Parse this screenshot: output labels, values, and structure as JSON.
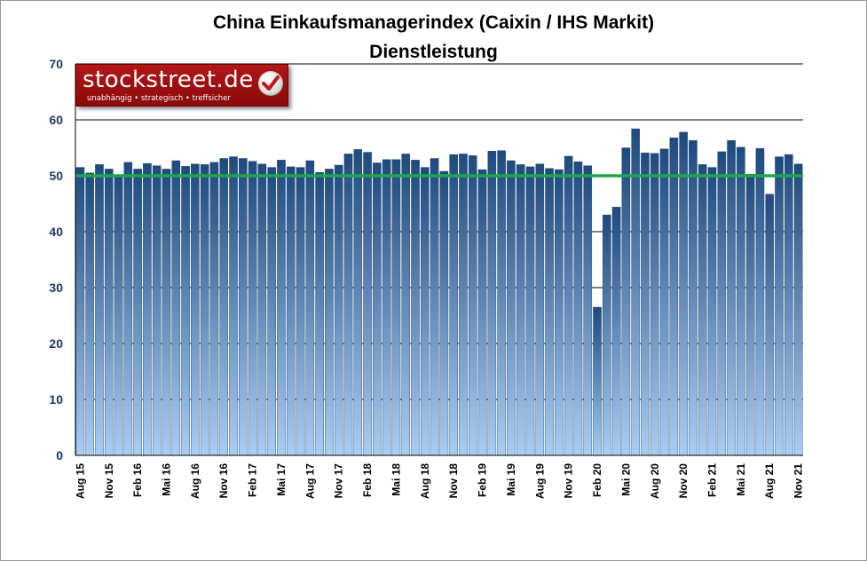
{
  "header": {
    "title": "China Einkaufsmanagerindex (Caixin / IHS Markit)",
    "subtitle": "Dienstleistung"
  },
  "logo": {
    "brand": "stockstreet.de",
    "tagline": "unabhängig • strategisch • treffsicher",
    "icon": "checkmark-icon",
    "color": "#a81212"
  },
  "chart_data": {
    "type": "bar",
    "title": "China Einkaufsmanagerindex (Caixin / IHS Markit)",
    "subtitle": "Dienstleistung",
    "ylim": [
      0,
      70
    ],
    "yticks": [
      0,
      10,
      20,
      30,
      40,
      50,
      60,
      70
    ],
    "grid": true,
    "reference_line": 50,
    "reference_line_color": "#1aa84a",
    "bar_color_top": "#1f4a7e",
    "bar_color_bottom": "#a9cdf3",
    "categories": [
      "Aug 15",
      "Sep 15",
      "Okt 15",
      "Nov 15",
      "Dez 15",
      "Jan 16",
      "Feb 16",
      "Mrz 16",
      "Apr 16",
      "Mai 16",
      "Jun 16",
      "Jul 16",
      "Aug 16",
      "Sep 16",
      "Okt 16",
      "Nov 16",
      "Dez 16",
      "Jan 17",
      "Feb 17",
      "Mrz 17",
      "Apr 17",
      "Mai 17",
      "Jun 17",
      "Jul 17",
      "Aug 17",
      "Sep 17",
      "Okt 17",
      "Nov 17",
      "Dez 17",
      "Jan 18",
      "Feb 18",
      "Mrz 18",
      "Apr 18",
      "Mai 18",
      "Jun 18",
      "Jul 18",
      "Aug 18",
      "Sep 18",
      "Okt 18",
      "Nov 18",
      "Dez 18",
      "Jan 19",
      "Feb 19",
      "Mrz 19",
      "Apr 19",
      "Mai 19",
      "Jun 19",
      "Jul 19",
      "Aug 19",
      "Sep 19",
      "Okt 19",
      "Nov 19",
      "Dez 19",
      "Jan 20",
      "Feb 20",
      "Mrz 20",
      "Apr 20",
      "Mai 20",
      "Jun 20",
      "Jul 20",
      "Aug 20",
      "Sep 20",
      "Okt 20",
      "Nov 20",
      "Dez 20",
      "Jan 21",
      "Feb 21",
      "Mrz 21",
      "Apr 21",
      "Mai 21",
      "Jun 21",
      "Jul 21",
      "Aug 21",
      "Sep 21",
      "Okt 21",
      "Nov 21"
    ],
    "xtick_labels": [
      "Aug 15",
      "Nov 15",
      "Feb 16",
      "Mai 16",
      "Aug 16",
      "Nov 16",
      "Feb 17",
      "Mai 17",
      "Aug 17",
      "Nov 17",
      "Feb 18",
      "Mai 18",
      "Aug 18",
      "Nov 18",
      "Feb 19",
      "Mai 19",
      "Aug 19",
      "Nov 19",
      "Feb 20",
      "Mai 20",
      "Aug 20",
      "Nov 20",
      "Feb 21",
      "Mai 21",
      "Aug 21",
      "Nov 21"
    ],
    "values": [
      51.5,
      50.5,
      52.0,
      51.2,
      50.2,
      52.4,
      51.2,
      52.2,
      51.8,
      51.2,
      52.7,
      51.7,
      52.1,
      52.0,
      52.4,
      53.1,
      53.4,
      53.1,
      52.6,
      52.1,
      51.5,
      52.8,
      51.6,
      51.5,
      52.7,
      50.6,
      51.2,
      51.9,
      53.9,
      54.7,
      54.2,
      52.3,
      52.9,
      52.9,
      53.9,
      52.8,
      51.5,
      53.1,
      50.8,
      53.8,
      53.9,
      53.6,
      51.1,
      54.4,
      54.5,
      52.7,
      52.0,
      51.6,
      52.1,
      51.3,
      51.1,
      53.5,
      52.5,
      51.8,
      26.5,
      43.0,
      44.4,
      55.0,
      58.4,
      54.1,
      54.0,
      54.8,
      56.8,
      57.8,
      56.3,
      52.0,
      51.5,
      54.3,
      56.3,
      55.1,
      50.3,
      54.9,
      46.7,
      53.4,
      53.8,
      52.1
    ]
  }
}
